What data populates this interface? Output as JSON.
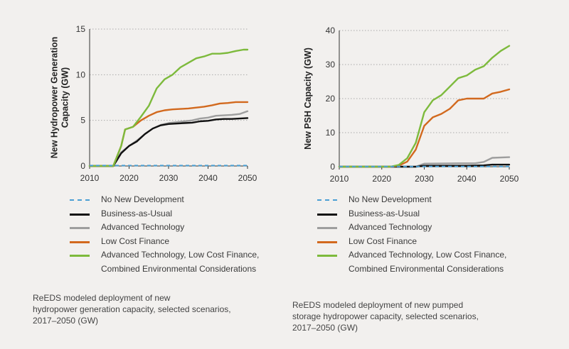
{
  "colors": {
    "no_new": "#4a9fd4",
    "bau": "#111111",
    "adv_tech": "#9e9e9e",
    "low_cost": "#d2691e",
    "combined": "#7dba3c",
    "grid": "#aaaaaa"
  },
  "chart_data": [
    {
      "type": "line",
      "title": "",
      "xlabel": "",
      "ylabel": "New Hydropower Generation Capacity (GW)",
      "ylabel_lines": [
        "New Hydropower Generation",
        "Capacity (GW)"
      ],
      "xlim": [
        2010,
        2050
      ],
      "ylim": [
        0,
        15
      ],
      "x_ticks": [
        2010,
        2020,
        2030,
        2040,
        2050
      ],
      "y_ticks": [
        0,
        5,
        10,
        15
      ],
      "grid": "horizontal-dotted",
      "series": [
        {
          "name": "No New Development",
          "color_key": "no_new",
          "dashed": true,
          "points": [
            [
              2010,
              0.05
            ],
            [
              2050,
              0.05
            ]
          ]
        },
        {
          "name": "Business-as-Usual",
          "color_key": "bau",
          "points": [
            [
              2010,
              0
            ],
            [
              2016,
              0
            ],
            [
              2018,
              1.4
            ],
            [
              2020,
              2.2
            ],
            [
              2022,
              2.7
            ],
            [
              2024,
              3.5
            ],
            [
              2026,
              4.1
            ],
            [
              2028,
              4.45
            ],
            [
              2030,
              4.6
            ],
            [
              2032,
              4.65
            ],
            [
              2034,
              4.7
            ],
            [
              2036,
              4.75
            ],
            [
              2038,
              4.9
            ],
            [
              2040,
              4.95
            ],
            [
              2042,
              5.1
            ],
            [
              2044,
              5.15
            ],
            [
              2046,
              5.15
            ],
            [
              2048,
              5.2
            ],
            [
              2050,
              5.25
            ]
          ]
        },
        {
          "name": "Advanced Technology",
          "color_key": "adv_tech",
          "points": [
            [
              2010,
              0
            ],
            [
              2016,
              0
            ],
            [
              2018,
              1.5
            ],
            [
              2020,
              2.2
            ],
            [
              2022,
              2.8
            ],
            [
              2024,
              3.5
            ],
            [
              2026,
              4.1
            ],
            [
              2028,
              4.5
            ],
            [
              2030,
              4.7
            ],
            [
              2032,
              4.8
            ],
            [
              2034,
              4.9
            ],
            [
              2036,
              5.0
            ],
            [
              2038,
              5.2
            ],
            [
              2040,
              5.3
            ],
            [
              2042,
              5.5
            ],
            [
              2044,
              5.55
            ],
            [
              2046,
              5.6
            ],
            [
              2048,
              5.7
            ],
            [
              2050,
              6.0
            ]
          ]
        },
        {
          "name": "Low Cost Finance",
          "color_key": "low_cost",
          "points": [
            [
              2010,
              0
            ],
            [
              2016,
              0
            ],
            [
              2018,
              2.2
            ],
            [
              2019,
              4.0
            ],
            [
              2021,
              4.3
            ],
            [
              2023,
              5.0
            ],
            [
              2025,
              5.5
            ],
            [
              2027,
              5.9
            ],
            [
              2029,
              6.1
            ],
            [
              2031,
              6.2
            ],
            [
              2033,
              6.25
            ],
            [
              2035,
              6.3
            ],
            [
              2037,
              6.4
            ],
            [
              2039,
              6.5
            ],
            [
              2041,
              6.65
            ],
            [
              2043,
              6.85
            ],
            [
              2045,
              6.9
            ],
            [
              2047,
              7.0
            ],
            [
              2050,
              7.0
            ]
          ]
        },
        {
          "name": "Advanced Technology, Low Cost Finance, Combined Environmental Considerations",
          "color_key": "combined",
          "points": [
            [
              2010,
              0
            ],
            [
              2016,
              0
            ],
            [
              2018,
              2.2
            ],
            [
              2019,
              4.0
            ],
            [
              2021,
              4.3
            ],
            [
              2023,
              5.4
            ],
            [
              2025,
              6.6
            ],
            [
              2027,
              8.5
            ],
            [
              2029,
              9.5
            ],
            [
              2031,
              10.0
            ],
            [
              2033,
              10.8
            ],
            [
              2035,
              11.3
            ],
            [
              2037,
              11.8
            ],
            [
              2039,
              12.0
            ],
            [
              2041,
              12.3
            ],
            [
              2043,
              12.3
            ],
            [
              2045,
              12.4
            ],
            [
              2047,
              12.6
            ],
            [
              2049,
              12.75
            ],
            [
              2050,
              12.75
            ]
          ]
        }
      ]
    },
    {
      "type": "line",
      "title": "",
      "xlabel": "",
      "ylabel": "New PSH Capacity (GW)",
      "ylabel_lines": [
        "New PSH Capacity (GW)"
      ],
      "xlim": [
        2010,
        2050
      ],
      "ylim": [
        0,
        40
      ],
      "x_ticks": [
        2010,
        2020,
        2030,
        2040,
        2050
      ],
      "y_ticks": [
        0,
        10,
        20,
        30,
        40
      ],
      "grid": "horizontal-dotted",
      "series": [
        {
          "name": "No New Development",
          "color_key": "no_new",
          "dashed": true,
          "points": [
            [
              2010,
              0.05
            ],
            [
              2050,
              0.05
            ]
          ]
        },
        {
          "name": "Business-as-Usual",
          "color_key": "bau",
          "points": [
            [
              2010,
              0
            ],
            [
              2028,
              0
            ],
            [
              2030,
              0.3
            ],
            [
              2040,
              0.3
            ],
            [
              2044,
              0.4
            ],
            [
              2046,
              0.6
            ],
            [
              2050,
              0.6
            ]
          ]
        },
        {
          "name": "Advanced Technology",
          "color_key": "adv_tech",
          "points": [
            [
              2010,
              0
            ],
            [
              2028,
              0
            ],
            [
              2030,
              0.9
            ],
            [
              2038,
              1.0
            ],
            [
              2042,
              1.0
            ],
            [
              2044,
              1.4
            ],
            [
              2046,
              2.6
            ],
            [
              2050,
              2.8
            ]
          ]
        },
        {
          "name": "Low Cost Finance",
          "color_key": "low_cost",
          "points": [
            [
              2010,
              0
            ],
            [
              2022,
              0
            ],
            [
              2024,
              0.3
            ],
            [
              2026,
              1.5
            ],
            [
              2028,
              5.0
            ],
            [
              2030,
              12.0
            ],
            [
              2032,
              14.5
            ],
            [
              2034,
              15.5
            ],
            [
              2036,
              17.0
            ],
            [
              2038,
              19.5
            ],
            [
              2040,
              20.0
            ],
            [
              2044,
              20.0
            ],
            [
              2046,
              21.5
            ],
            [
              2048,
              22.0
            ],
            [
              2050,
              22.7
            ]
          ]
        },
        {
          "name": "Advanced Technology, Low Cost Finance, Combined Environmental Considerations",
          "color_key": "combined",
          "points": [
            [
              2010,
              0
            ],
            [
              2022,
              0
            ],
            [
              2024,
              0.5
            ],
            [
              2026,
              2.5
            ],
            [
              2028,
              7.0
            ],
            [
              2030,
              16.0
            ],
            [
              2032,
              19.5
            ],
            [
              2034,
              21.0
            ],
            [
              2036,
              23.5
            ],
            [
              2038,
              26.0
            ],
            [
              2040,
              26.8
            ],
            [
              2042,
              28.5
            ],
            [
              2044,
              29.5
            ],
            [
              2046,
              32.0
            ],
            [
              2048,
              34.0
            ],
            [
              2050,
              35.5
            ]
          ]
        }
      ]
    }
  ],
  "legend": [
    {
      "label": "No New Development",
      "color_key": "no_new",
      "dashed": true
    },
    {
      "label": "Business-as-Usual",
      "color_key": "bau"
    },
    {
      "label": "Advanced Technology",
      "color_key": "adv_tech"
    },
    {
      "label": "Low Cost Finance",
      "color_key": "low_cost"
    },
    {
      "label": "Advanced Technology, Low Cost Finance,\nCombined Environmental Considerations",
      "color_key": "combined"
    }
  ],
  "captions": {
    "left": "ReEDS modeled deployment of new\nhydropower generation capacity, selected scenarios,\n2017–2050 (GW)",
    "right": "ReEDS modeled deployment of new pumped\nstorage hydropower capacity, selected scenarios,\n2017–2050 (GW)"
  }
}
